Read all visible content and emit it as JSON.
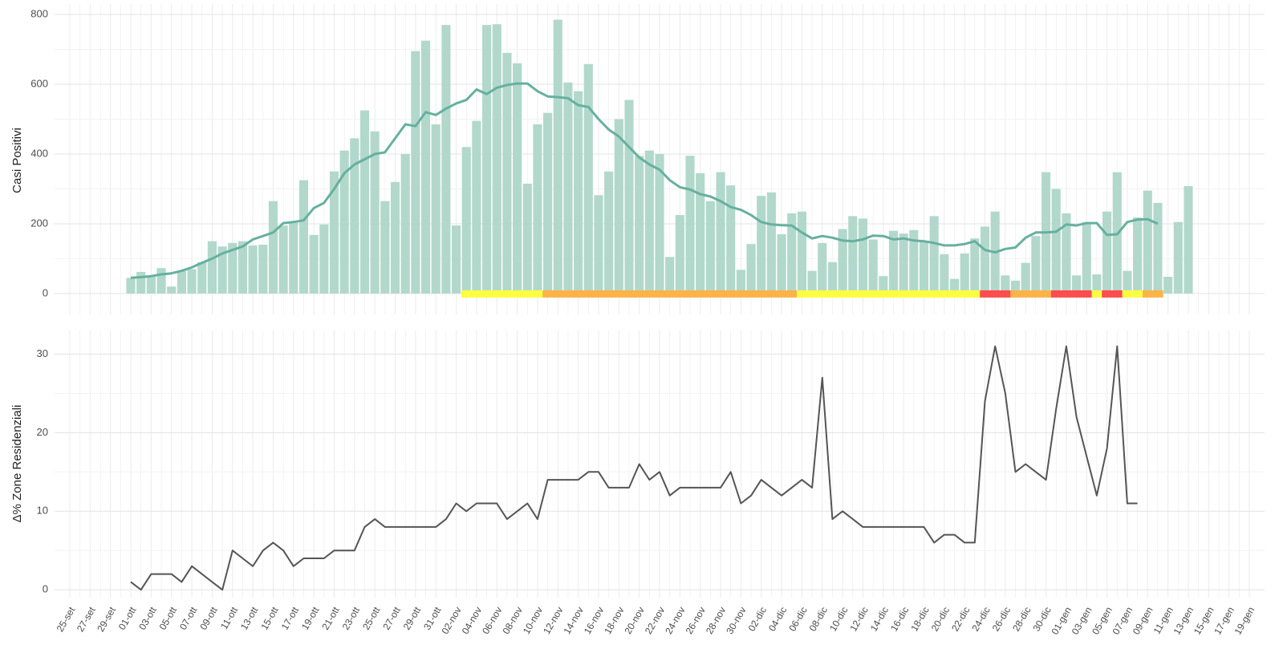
{
  "chart_data": [
    {
      "type": "bar",
      "y_label": "Casi Positivi",
      "ylim": [
        -60,
        830
      ],
      "yticks": [
        0,
        200,
        400,
        600,
        800
      ],
      "grid": true,
      "series": [
        {
          "type": "bar",
          "color": "#b2d8cc",
          "values": [
            null,
            null,
            null,
            null,
            null,
            null,
            45,
            62,
            50,
            73,
            20,
            65,
            70,
            90,
            150,
            135,
            145,
            150,
            138,
            140,
            265,
            195,
            205,
            325,
            168,
            198,
            350,
            410,
            445,
            525,
            465,
            265,
            320,
            400,
            695,
            725,
            485,
            770,
            195,
            420,
            495,
            770,
            772,
            690,
            660,
            315,
            485,
            518,
            785,
            605,
            580,
            658,
            282,
            350,
            500,
            555,
            395,
            410,
            400,
            105,
            225,
            395,
            345,
            265,
            348,
            310,
            68,
            142,
            280,
            290,
            170,
            230,
            235,
            65,
            145,
            90,
            185,
            222,
            215,
            155,
            50,
            180,
            172,
            182,
            150,
            222,
            113,
            42,
            115,
            158,
            192,
            235,
            52,
            37,
            88,
            165,
            348,
            300,
            230,
            52,
            205,
            55,
            235,
            348,
            65,
            218,
            295,
            260,
            48,
            205,
            308,
            null,
            null,
            null,
            null,
            null,
            null
          ]
        },
        {
          "type": "line",
          "color": "#66b09e",
          "values": [
            null,
            null,
            null,
            null,
            null,
            null,
            45,
            47,
            50,
            55,
            58,
            65,
            75,
            88,
            100,
            115,
            125,
            135,
            155,
            165,
            175,
            202,
            205,
            210,
            245,
            260,
            300,
            345,
            370,
            385,
            400,
            405,
            445,
            485,
            480,
            520,
            512,
            530,
            545,
            555,
            585,
            572,
            590,
            598,
            602,
            602,
            580,
            565,
            563,
            560,
            540,
            535,
            500,
            470,
            450,
            420,
            390,
            370,
            355,
            325,
            305,
            298,
            285,
            278,
            265,
            248,
            240,
            225,
            205,
            198,
            196,
            195,
            175,
            158,
            165,
            160,
            152,
            150,
            155,
            166,
            165,
            155,
            158,
            152,
            150,
            145,
            138,
            138,
            142,
            150,
            125,
            118,
            128,
            132,
            160,
            175,
            175,
            177,
            198,
            195,
            202,
            202,
            168,
            170,
            205,
            212,
            213,
            200,
            null,
            null,
            null,
            null,
            null,
            null,
            null,
            null,
            null
          ]
        }
      ],
      "zone_colors": [
        null,
        null,
        null,
        null,
        null,
        null,
        null,
        null,
        null,
        null,
        null,
        null,
        null,
        null,
        null,
        null,
        null,
        null,
        null,
        null,
        null,
        null,
        null,
        null,
        null,
        null,
        null,
        null,
        null,
        null,
        null,
        null,
        null,
        null,
        null,
        null,
        null,
        null,
        null,
        "#ffff40",
        "#ffff40",
        "#ffff40",
        "#ffff40",
        "#ffff40",
        "#ffff40",
        "#ffff40",
        "#ffff40",
        "#ffb347",
        "#ffb347",
        "#ffb347",
        "#ffb347",
        "#ffb347",
        "#ffb347",
        "#ffb347",
        "#ffb347",
        "#ffb347",
        "#ffb347",
        "#ffb347",
        "#ffb347",
        "#ffb347",
        "#ffb347",
        "#ffb347",
        "#ffb347",
        "#ffb347",
        "#ffb347",
        "#ffb347",
        "#ffb347",
        "#ffb347",
        "#ffb347",
        "#ffb347",
        "#ffb347",
        "#ffb347",
        "#ffff40",
        "#ffff40",
        "#ffff40",
        "#ffff40",
        "#ffff40",
        "#ffff40",
        "#ffff40",
        "#ffff40",
        "#ffff40",
        "#ffff40",
        "#ffff40",
        "#ffff40",
        "#ffff40",
        "#ffff40",
        "#ffff40",
        "#ffff40",
        "#ffff40",
        "#ffff40",
        "#ff4c4c",
        "#ff4c4c",
        "#ff4c4c",
        "#ffb347",
        "#ffb347",
        "#ffb347",
        "#ffb347",
        "#ff4c4c",
        "#ff4c4c",
        "#ff4c4c",
        "#ff4c4c",
        "#ffff40",
        "#ff4c4c",
        "#ff4c4c",
        "#ffff40",
        "#ffff40",
        "#ffb347",
        "#ffb347",
        null,
        null,
        null,
        null,
        null,
        null,
        null,
        null,
        null
      ]
    },
    {
      "type": "line",
      "y_label": "Δ% Zone Residenziali",
      "ylim": [
        -1,
        33
      ],
      "yticks": [
        0,
        10,
        20,
        30
      ],
      "grid": true,
      "categories": [
        "25-set",
        null,
        "27-set",
        null,
        "29-set",
        null,
        "01-ott",
        null,
        "03-ott",
        null,
        "05-ott",
        null,
        "07-ott",
        null,
        "09-ott",
        null,
        "11-ott",
        null,
        "13-ott",
        null,
        "15-ott",
        null,
        "17-ott",
        null,
        "19-ott",
        null,
        "21-ott",
        null,
        "23-ott",
        null,
        "25-ott",
        null,
        "27-ott",
        null,
        "29-ott",
        null,
        "31-ott",
        null,
        "02-nov",
        null,
        "04-nov",
        null,
        "06-nov",
        null,
        "08-nov",
        null,
        "10-nov",
        null,
        "12-nov",
        null,
        "14-nov",
        null,
        "16-nov",
        null,
        "18-nov",
        null,
        "20-nov",
        null,
        "22-nov",
        null,
        "24-nov",
        null,
        "26-nov",
        null,
        "28-nov",
        null,
        "30-nov",
        null,
        "02-dic",
        null,
        "04-dic",
        null,
        "06-dic",
        null,
        "08-dic",
        null,
        "10-dic",
        null,
        "12-dic",
        null,
        "14-dic",
        null,
        "16-dic",
        null,
        "18-dic",
        null,
        "20-dic",
        null,
        "22-dic",
        null,
        "24-dic",
        null,
        "26-dic",
        null,
        "28-dic",
        null,
        "30-dic",
        null,
        "01-gen",
        null,
        "03-gen",
        null,
        "05-gen",
        null,
        "07-gen",
        null,
        "09-gen",
        null,
        "11-gen",
        null,
        "13-gen",
        null,
        "15-gen",
        null,
        "17-gen",
        null,
        "19-gen"
      ],
      "series": [
        {
          "color": "#555555",
          "values": [
            null,
            null,
            null,
            null,
            null,
            null,
            1,
            0,
            2,
            2,
            2,
            1,
            3,
            2,
            1,
            0,
            5,
            4,
            3,
            5,
            6,
            5,
            3,
            4,
            4,
            4,
            5,
            5,
            5,
            8,
            9,
            8,
            8,
            8,
            8,
            8,
            8,
            9,
            11,
            10,
            11,
            11,
            11,
            9,
            10,
            11,
            9,
            14,
            14,
            14,
            14,
            15,
            15,
            13,
            13,
            13,
            16,
            14,
            15,
            12,
            13,
            13,
            13,
            13,
            13,
            15,
            11,
            12,
            14,
            13,
            12,
            13,
            14,
            13,
            27,
            9,
            10,
            9,
            8,
            8,
            8,
            8,
            8,
            8,
            8,
            6,
            7,
            7,
            6,
            6,
            24,
            31,
            25,
            15,
            16,
            15,
            14,
            23,
            31,
            22,
            17,
            12,
            18,
            31,
            11,
            11,
            null,
            null,
            null,
            null,
            null,
            null,
            null,
            null,
            null,
            null,
            null
          ]
        }
      ]
    }
  ]
}
